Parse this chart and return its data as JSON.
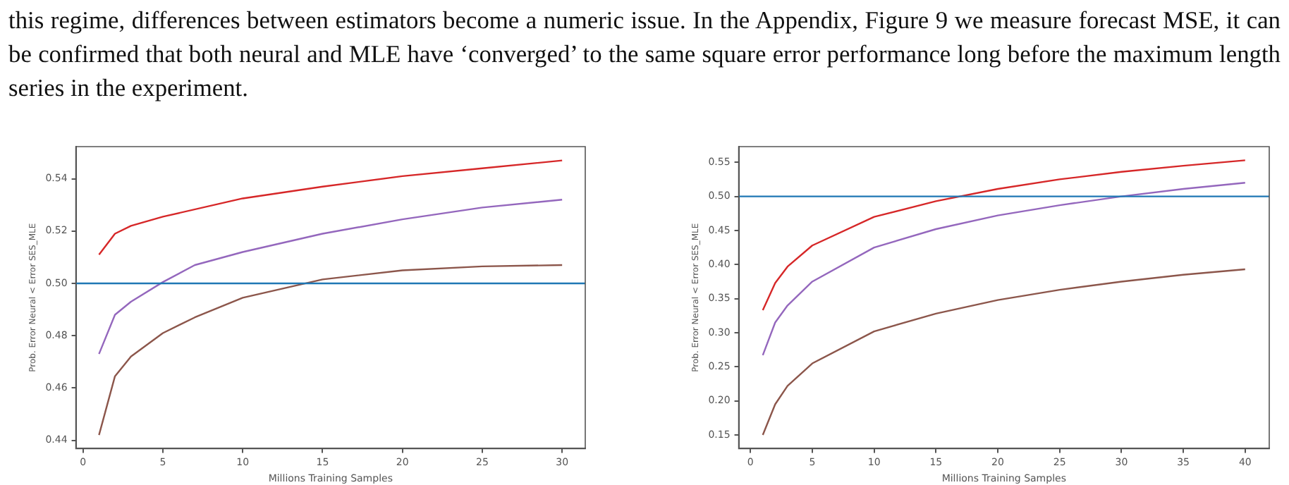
{
  "chart_data": [
    {
      "type": "line",
      "annotations": [
        "this regime, differences between estimators become a numeric issue. In the Appendix, Figure 9 we measure forecast MSE, it can be confirmed that both neural and MLE have ‘converged’ to the same square error performance long before the maximum length series in the experiment."
      ],
      "xlabel": "Millions Training Samples",
      "ylabel": "Prob. Error Neural < Error SES_MLE",
      "xlim": [
        -0.45,
        31.45
      ],
      "xticks": [
        0,
        5,
        10,
        15,
        20,
        25,
        30
      ],
      "ylim": [
        0.4368,
        0.5523
      ],
      "yticks": [
        0.44,
        0.46,
        0.48,
        {
          "value": 0.5,
          "label": "0.50"
        },
        0.52,
        0.54
      ],
      "grid": false,
      "legend": false,
      "ref_lines": [
        {
          "axis": "y",
          "value": 0.5,
          "color": "#1f77b4"
        }
      ],
      "series": [
        {
          "color": "#d62728",
          "x": [
            1,
            2,
            3,
            5,
            10,
            15,
            20,
            25,
            30
          ],
          "values": [
            0.511,
            0.519,
            0.522,
            0.5255,
            0.5325,
            0.537,
            0.541,
            0.544,
            0.547
          ]
        },
        {
          "color": "#9467bd",
          "x": [
            1,
            2,
            3,
            5,
            7,
            10,
            15,
            20,
            25,
            30
          ],
          "values": [
            0.473,
            0.488,
            0.493,
            0.5005,
            0.507,
            0.512,
            0.519,
            0.5245,
            0.529,
            0.532
          ]
        },
        {
          "color": "#8c564b",
          "x": [
            1,
            2,
            3,
            5,
            7,
            10,
            15,
            20,
            25,
            30
          ],
          "values": [
            0.442,
            0.4645,
            0.472,
            0.481,
            0.487,
            0.4945,
            0.5015,
            0.505,
            0.5065,
            0.507
          ]
        }
      ]
    },
    {
      "type": "line",
      "xlabel": "Millions Training Samples",
      "ylabel": "Prob. Error Neural < Error SES_MLE",
      "xlim": [
        -0.95,
        41.95
      ],
      "xticks": [
        0,
        5,
        10,
        15,
        20,
        25,
        30,
        35,
        40
      ],
      "ylim": [
        0.13,
        0.573
      ],
      "yticks": [
        0.15,
        {
          "value": 0.2,
          "label": "0.20"
        },
        0.25,
        {
          "value": 0.3,
          "label": "0.30"
        },
        0.35,
        {
          "value": 0.4,
          "label": "0.40"
        },
        0.45,
        {
          "value": 0.5,
          "label": "0.50"
        },
        0.55
      ],
      "grid": false,
      "legend": false,
      "ref_lines": [
        {
          "axis": "y",
          "value": 0.5,
          "color": "#1f77b4"
        }
      ],
      "series": [
        {
          "color": "#d62728",
          "x": [
            1,
            2,
            3,
            5,
            10,
            15,
            20,
            25,
            30,
            35,
            40
          ],
          "values": [
            0.333,
            0.373,
            0.397,
            0.428,
            0.47,
            0.493,
            0.511,
            0.525,
            0.536,
            0.545,
            0.553
          ]
        },
        {
          "color": "#9467bd",
          "x": [
            1,
            2,
            3,
            5,
            10,
            15,
            20,
            25,
            30,
            35,
            40
          ],
          "values": [
            0.267,
            0.315,
            0.34,
            0.375,
            0.425,
            0.452,
            0.472,
            0.487,
            0.5,
            0.511,
            0.52
          ]
        },
        {
          "color": "#8c564b",
          "x": [
            1,
            2,
            3,
            5,
            10,
            15,
            20,
            25,
            30,
            35,
            40
          ],
          "values": [
            0.15,
            0.195,
            0.222,
            0.255,
            0.302,
            0.328,
            0.348,
            0.363,
            0.375,
            0.385,
            0.393
          ]
        }
      ]
    }
  ]
}
